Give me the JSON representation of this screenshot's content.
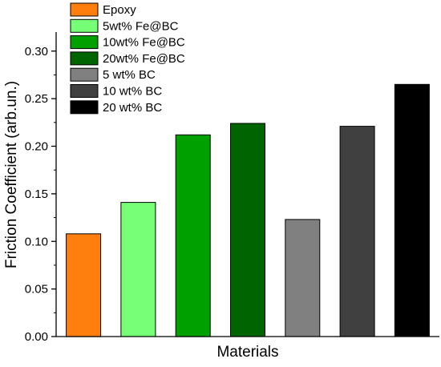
{
  "chart_data": {
    "type": "bar",
    "xlabel": "Materials",
    "ylabel": "Friction Coefficient (arb.un.)",
    "ylim": [
      0,
      0.32
    ],
    "yticks": [
      "0.00",
      "0.05",
      "0.10",
      "0.15",
      "0.20",
      "0.25",
      "0.30"
    ],
    "grid": false,
    "legend_position": "top-left",
    "categories": [
      "Epoxy",
      "5wt% Fe@BC",
      "10wt% Fe@BC",
      "20wt% Fe@BC",
      "5 wt% BC",
      "10 wt% BC",
      "20 wt% BC"
    ],
    "values": [
      0.108,
      0.141,
      0.212,
      0.224,
      0.123,
      0.221,
      0.265
    ],
    "colors": [
      "#ff7f0e",
      "#77ff77",
      "#00a000",
      "#006400",
      "#808080",
      "#404040",
      "#000000"
    ]
  }
}
